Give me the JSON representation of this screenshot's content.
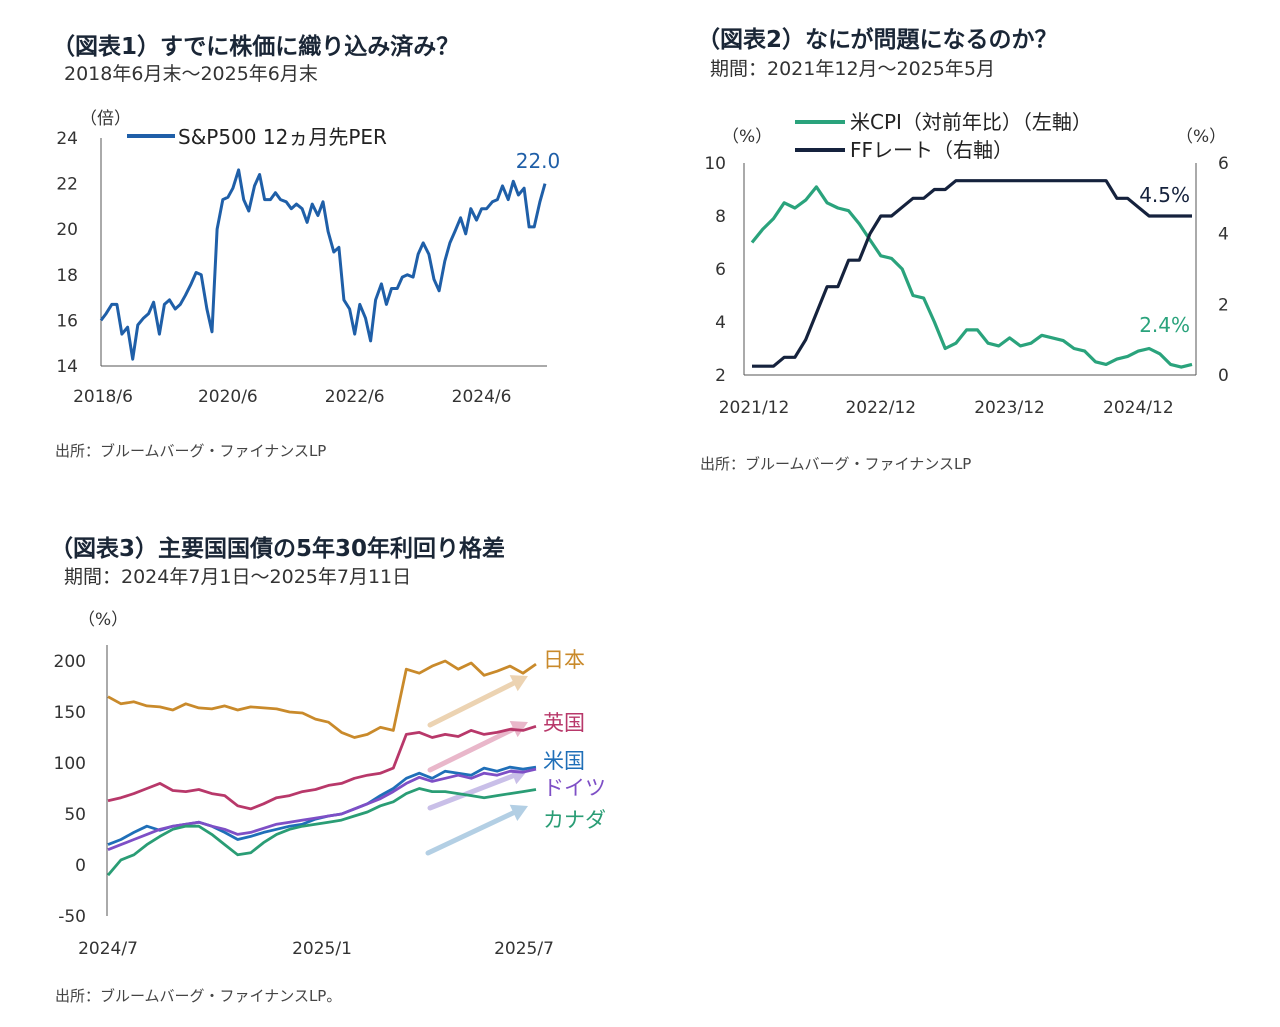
{
  "colors": {
    "per": "#1f5fa8",
    "cpi": "#2aa37c",
    "ff": "#15223d",
    "japan": "#c98a2b",
    "uk": "#b8386a",
    "us": "#1f6fb8",
    "germany": "#7e4fc6",
    "canada": "#2a9d75",
    "arrow_japan": "#ecd3b2",
    "arrow_uk": "#e9b7ca",
    "arrow_us": "#c9bfe8",
    "arrow_canada": "#b3cfe4"
  },
  "chart1": {
    "title": "（図表1）すでに株価に織り込み済み？",
    "subtitle": "2018年6月末～2025年6月末",
    "source": "出所：ブルームバーグ・ファイナンスLP",
    "chart_data": {
      "type": "line",
      "unit_label": "（倍）",
      "legend": "S&P500 12ヵ月先PER",
      "end_label": "22.0",
      "x_ticks": [
        "2018/6",
        "2020/6",
        "2022/6",
        "2024/6"
      ],
      "y_ticks": [
        "14",
        "16",
        "18",
        "20",
        "22",
        "24"
      ],
      "ylim": [
        14,
        24
      ],
      "series": [
        {
          "name": "S&P500 12ヵ月先PER",
          "x": [
            2018.5,
            2018.58,
            2018.67,
            2018.75,
            2018.83,
            2018.92,
            2019.0,
            2019.08,
            2019.17,
            2019.25,
            2019.33,
            2019.42,
            2019.5,
            2019.58,
            2019.67,
            2019.75,
            2019.83,
            2019.92,
            2020.0,
            2020.08,
            2020.17,
            2020.25,
            2020.33,
            2020.42,
            2020.5,
            2020.58,
            2020.67,
            2020.75,
            2020.83,
            2020.92,
            2021.0,
            2021.08,
            2021.17,
            2021.25,
            2021.33,
            2021.42,
            2021.5,
            2021.58,
            2021.67,
            2021.75,
            2021.83,
            2021.92,
            2022.0,
            2022.08,
            2022.17,
            2022.25,
            2022.33,
            2022.42,
            2022.5,
            2022.58,
            2022.67,
            2022.75,
            2022.83,
            2022.92,
            2023.0,
            2023.08,
            2023.17,
            2023.25,
            2023.33,
            2023.42,
            2023.5,
            2023.58,
            2023.67,
            2023.75,
            2023.83,
            2023.92,
            2024.0,
            2024.08,
            2024.17,
            2024.25,
            2024.33,
            2024.42,
            2024.5,
            2024.58,
            2024.67,
            2024.75,
            2024.83,
            2024.92,
            2025.0,
            2025.08,
            2025.17,
            2025.25,
            2025.33,
            2025.42,
            2025.5
          ],
          "values": [
            16.0,
            16.3,
            16.7,
            16.7,
            15.4,
            15.7,
            14.3,
            15.8,
            16.1,
            16.3,
            16.8,
            15.4,
            16.7,
            16.9,
            16.5,
            16.7,
            17.1,
            17.6,
            18.1,
            18.0,
            16.5,
            15.5,
            20.0,
            21.3,
            21.4,
            21.8,
            22.6,
            21.3,
            20.8,
            21.9,
            22.4,
            21.3,
            21.3,
            21.6,
            21.3,
            21.2,
            20.9,
            21.1,
            20.9,
            20.3,
            21.1,
            20.6,
            21.2,
            19.9,
            19.0,
            19.2,
            16.9,
            16.5,
            15.4,
            16.7,
            16.1,
            15.1,
            16.9,
            17.6,
            16.7,
            17.4,
            17.4,
            17.9,
            18.0,
            17.9,
            18.9,
            19.4,
            18.9,
            17.8,
            17.3,
            18.6,
            19.4,
            19.9,
            20.5,
            19.8,
            20.9,
            20.4,
            20.9,
            20.9,
            21.2,
            21.3,
            21.9,
            21.3,
            22.1,
            21.5,
            21.8,
            20.1,
            20.1,
            21.2,
            22.0
          ]
        }
      ]
    }
  },
  "chart2": {
    "title": "（図表2）なにが問題になるのか？",
    "subtitle": "期間：2021年12月～2025年5月",
    "source": "出所：ブルームバーグ・ファイナンスLP",
    "chart_data": {
      "type": "line",
      "left_unit_label": "（%）",
      "right_unit_label": "（%）",
      "legend_cpi": "米CPI（対前年比）（左軸）",
      "legend_ff": "FFレート（右軸）",
      "end_label_cpi": "2.4%",
      "end_label_ff": "4.5%",
      "x_ticks": [
        "2021/12",
        "2022/12",
        "2023/12",
        "2024/12"
      ],
      "y_left_ticks": [
        "2",
        "4",
        "6",
        "8",
        "10"
      ],
      "y_right_ticks": [
        "0",
        "2",
        "4",
        "6"
      ],
      "ylim_left": [
        2,
        10
      ],
      "ylim_right": [
        0,
        6
      ],
      "series": [
        {
          "name": "米CPI（対前年比）",
          "axis": "left",
          "values": [
            7.0,
            7.5,
            7.9,
            8.5,
            8.3,
            8.6,
            9.1,
            8.5,
            8.3,
            8.2,
            7.7,
            7.1,
            6.5,
            6.4,
            6.0,
            5.0,
            4.9,
            4.0,
            3.0,
            3.2,
            3.7,
            3.7,
            3.2,
            3.1,
            3.4,
            3.1,
            3.2,
            3.5,
            3.4,
            3.3,
            3.0,
            2.9,
            2.5,
            2.4,
            2.6,
            2.7,
            2.9,
            3.0,
            2.8,
            2.4,
            2.3,
            2.4
          ]
        },
        {
          "name": "FFレート",
          "axis": "right",
          "values": [
            0.25,
            0.25,
            0.25,
            0.5,
            0.5,
            1.0,
            1.75,
            2.5,
            2.5,
            3.25,
            3.25,
            4.0,
            4.5,
            4.5,
            4.75,
            5.0,
            5.0,
            5.25,
            5.25,
            5.5,
            5.5,
            5.5,
            5.5,
            5.5,
            5.5,
            5.5,
            5.5,
            5.5,
            5.5,
            5.5,
            5.5,
            5.5,
            5.5,
            5.5,
            5.0,
            5.0,
            4.75,
            4.5,
            4.5,
            4.5,
            4.5,
            4.5
          ]
        }
      ]
    }
  },
  "chart3": {
    "title": "（図表3）主要国国債の5年30年利回り格差",
    "subtitle": "期間：2024年7月1日～2025年7月11日",
    "source": "出所：ブルームバーグ・ファイナンスLP。",
    "chart_data": {
      "type": "line",
      "unit_label": "（%）",
      "x_ticks": [
        "2024/7",
        "2025/1",
        "2025/7"
      ],
      "y_ticks": [
        "-50",
        "0",
        "50",
        "100",
        "150",
        "200"
      ],
      "ylim": [
        -50,
        200
      ],
      "series": [
        {
          "name": "日本",
          "values": [
            165,
            158,
            160,
            156,
            155,
            152,
            158,
            154,
            153,
            156,
            152,
            155,
            154,
            153,
            150,
            149,
            143,
            140,
            130,
            125,
            128,
            135,
            132,
            192,
            188,
            195,
            200,
            192,
            198,
            186,
            190,
            195,
            188,
            197
          ]
        },
        {
          "name": "英国",
          "values": [
            63,
            66,
            70,
            75,
            80,
            73,
            72,
            74,
            70,
            68,
            58,
            55,
            60,
            66,
            68,
            72,
            74,
            78,
            80,
            85,
            88,
            90,
            95,
            128,
            130,
            125,
            128,
            126,
            132,
            128,
            130,
            133,
            132,
            136
          ]
        },
        {
          "name": "米国",
          "values": [
            20,
            25,
            32,
            38,
            34,
            38,
            40,
            42,
            38,
            32,
            25,
            28,
            32,
            35,
            38,
            40,
            45,
            48,
            50,
            55,
            60,
            68,
            75,
            85,
            90,
            85,
            92,
            90,
            88,
            95,
            92,
            96,
            94,
            96
          ]
        },
        {
          "name": "ドイツ",
          "values": [
            15,
            20,
            25,
            30,
            35,
            38,
            40,
            42,
            38,
            35,
            30,
            32,
            36,
            40,
            42,
            44,
            46,
            48,
            50,
            55,
            60,
            65,
            72,
            80,
            86,
            82,
            85,
            88,
            85,
            90,
            88,
            92,
            91,
            94
          ]
        },
        {
          "name": "カナダ",
          "values": [
            -10,
            5,
            10,
            20,
            28,
            35,
            38,
            38,
            30,
            20,
            10,
            12,
            22,
            30,
            35,
            38,
            40,
            42,
            44,
            48,
            52,
            58,
            62,
            70,
            75,
            72,
            72,
            70,
            68,
            66,
            68,
            70,
            72,
            74
          ]
        }
      ]
    }
  }
}
